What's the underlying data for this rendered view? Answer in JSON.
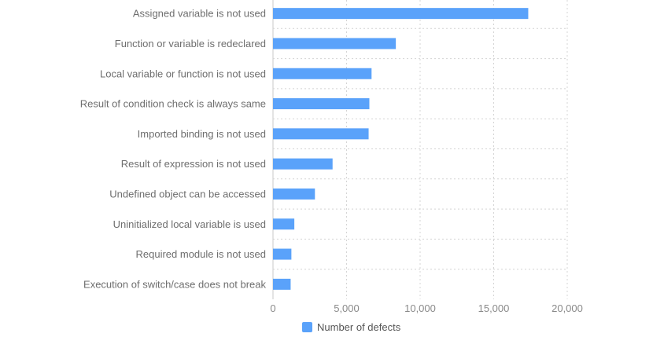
{
  "chart_data": {
    "type": "bar",
    "orientation": "horizontal",
    "categories": [
      "Assigned variable is not used",
      "Function or variable is redeclared",
      "Local variable or function is not used",
      "Result of condition check is always same",
      "Imported binding is not used",
      "Result of expression is not used",
      "Undefined object can be accessed",
      "Uninitialized local variable is used",
      "Required module is not used",
      "Execution of switch/case does not break"
    ],
    "series": [
      {
        "name": "Number of defects",
        "values": [
          17350,
          8350,
          6700,
          6550,
          6500,
          4050,
          2850,
          1450,
          1250,
          1200
        ]
      }
    ],
    "xlim": [
      0,
      20000
    ],
    "xticks": [
      0,
      5000,
      10000,
      15000,
      20000
    ],
    "xtick_labels": [
      "0",
      "5,000",
      "10,000",
      "15,000",
      "20,000"
    ],
    "title": "",
    "xlabel": "",
    "ylabel": "",
    "grid": true,
    "legend_position": "bottom",
    "bar_color": "#5aa2fa",
    "grid_color": "#d4d4d4"
  }
}
